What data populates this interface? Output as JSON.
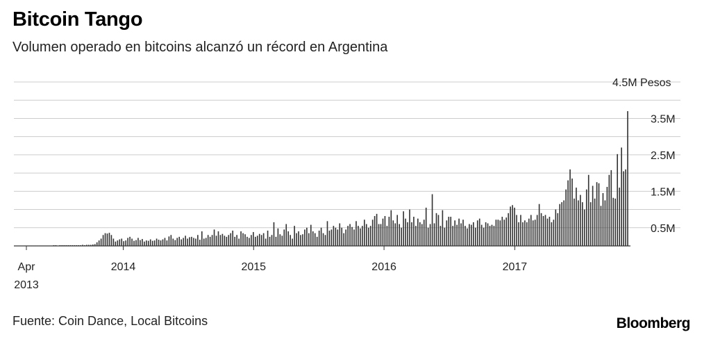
{
  "title": "Bitcoin Tango",
  "subtitle": "Volumen operado en bitcoins alcanzó un récord en Argentina",
  "source": "Fuente: Coin Dance, Local Bitcoins",
  "logo": "Bloomberg",
  "colors": {
    "bar": "#333333",
    "grid": "#cccccc",
    "axis": "#333333"
  },
  "chart_data": {
    "type": "bar",
    "title": "Bitcoin Tango",
    "subtitle": "Volumen operado en bitcoins alcanzó un récord en Argentina",
    "ylabel": "",
    "ylim": [
      0,
      4.5
    ],
    "y_unit": "M Pesos",
    "y_ticks": [
      {
        "value": 0.5,
        "label": "0.5M"
      },
      {
        "value": 1.5,
        "label": "1.5M"
      },
      {
        "value": 2.5,
        "label": "2.5M"
      },
      {
        "value": 3.5,
        "label": "3.5M"
      },
      {
        "value": 4.5,
        "label": "4.5M Pesos"
      }
    ],
    "x_ticks": [
      {
        "label": "Apr",
        "sublabel": "2013",
        "date": "2013-04-01"
      },
      {
        "label": "2014",
        "date": "2014-01-01"
      },
      {
        "label": "2015",
        "date": "2015-01-01"
      },
      {
        "label": "2016",
        "date": "2016-01-01"
      },
      {
        "label": "2017",
        "date": "2017-01-01"
      }
    ],
    "x_start": "2013-04-01",
    "frequency": "weekly",
    "series": [
      {
        "values": [
          0.01,
          0.01,
          0.01,
          0.01,
          0.01,
          0.01,
          0.01,
          0.01,
          0.01,
          0.01,
          0.01,
          0.01,
          0.01,
          0.01,
          0.02,
          0.02,
          0.01,
          0.02,
          0.02,
          0.02,
          0.02,
          0.02,
          0.02,
          0.02,
          0.02,
          0.02,
          0.02,
          0.02,
          0.03,
          0.02,
          0.03,
          0.03,
          0.03,
          0.04,
          0.05,
          0.1,
          0.15,
          0.2,
          0.3,
          0.35,
          0.34,
          0.36,
          0.3,
          0.2,
          0.12,
          0.15,
          0.18,
          0.2,
          0.13,
          0.15,
          0.22,
          0.25,
          0.2,
          0.14,
          0.16,
          0.22,
          0.16,
          0.19,
          0.12,
          0.15,
          0.14,
          0.18,
          0.14,
          0.15,
          0.2,
          0.17,
          0.15,
          0.18,
          0.22,
          0.15,
          0.26,
          0.3,
          0.2,
          0.16,
          0.22,
          0.25,
          0.18,
          0.22,
          0.28,
          0.2,
          0.24,
          0.25,
          0.22,
          0.2,
          0.3,
          0.17,
          0.4,
          0.2,
          0.22,
          0.3,
          0.25,
          0.3,
          0.45,
          0.28,
          0.4,
          0.3,
          0.33,
          0.28,
          0.25,
          0.3,
          0.35,
          0.42,
          0.25,
          0.3,
          0.2,
          0.4,
          0.35,
          0.32,
          0.25,
          0.22,
          0.3,
          0.38,
          0.25,
          0.28,
          0.33,
          0.3,
          0.35,
          0.2,
          0.42,
          0.25,
          0.3,
          0.65,
          0.25,
          0.48,
          0.32,
          0.28,
          0.45,
          0.6,
          0.4,
          0.3,
          0.2,
          0.55,
          0.35,
          0.4,
          0.3,
          0.32,
          0.45,
          0.5,
          0.35,
          0.58,
          0.4,
          0.35,
          0.25,
          0.42,
          0.5,
          0.35,
          0.3,
          0.68,
          0.42,
          0.45,
          0.55,
          0.5,
          0.45,
          0.62,
          0.5,
          0.35,
          0.45,
          0.55,
          0.6,
          0.52,
          0.45,
          0.68,
          0.55,
          0.48,
          0.55,
          0.72,
          0.6,
          0.5,
          0.55,
          0.72,
          0.82,
          0.88,
          0.6,
          0.6,
          0.75,
          0.82,
          0.55,
          0.8,
          0.98,
          0.7,
          0.62,
          0.85,
          0.6,
          0.5,
          0.95,
          0.75,
          0.65,
          1.0,
          0.65,
          0.8,
          0.55,
          0.75,
          0.65,
          0.6,
          0.72,
          1.05,
          0.5,
          0.6,
          1.42,
          0.62,
          0.9,
          0.85,
          0.55,
          0.98,
          0.5,
          0.7,
          0.8,
          0.8,
          0.55,
          0.7,
          0.58,
          0.75,
          0.62,
          0.72,
          0.55,
          0.48,
          0.6,
          0.58,
          0.65,
          0.5,
          0.7,
          0.75,
          0.58,
          0.5,
          0.65,
          0.62,
          0.55,
          0.58,
          0.55,
          0.72,
          0.72,
          0.7,
          0.8,
          0.72,
          0.78,
          0.9,
          1.08,
          1.12,
          1.05,
          0.85,
          0.65,
          0.85,
          0.65,
          0.7,
          0.65,
          0.75,
          0.85,
          0.7,
          0.72,
          0.85,
          1.15,
          0.9,
          0.82,
          0.85,
          0.75,
          0.8,
          0.65,
          0.72,
          1.0,
          0.9,
          1.15,
          1.2,
          1.25,
          1.55,
          1.8,
          2.1,
          1.85,
          1.3,
          1.6,
          1.25,
          1.4,
          1.2,
          1.0,
          1.55,
          1.95,
          1.2,
          1.65,
          1.3,
          1.75,
          1.72,
          1.1,
          1.45,
          1.25,
          1.62,
          1.95,
          2.08,
          1.32,
          1.3,
          2.52,
          1.6,
          2.7,
          2.05,
          2.1,
          3.7
        ]
      }
    ]
  }
}
